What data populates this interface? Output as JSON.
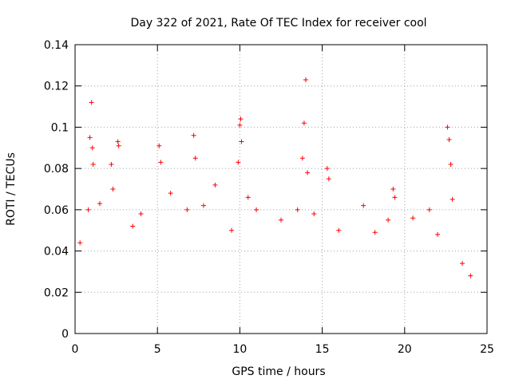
{
  "chart_data": {
    "type": "scatter",
    "title": "Day 322 of 2021, Rate Of TEC Index for receiver cool",
    "xlabel": "GPS time / hours",
    "ylabel": "ROTI / TECUs",
    "xlim": [
      0,
      25
    ],
    "ylim": [
      0,
      0.14
    ],
    "xticks": [
      0,
      5,
      10,
      15,
      20,
      25
    ],
    "yticks": [
      0,
      0.02,
      0.04,
      0.06,
      0.08,
      0.1,
      0.12,
      0.14
    ],
    "xtick_labels": [
      "0",
      "5",
      "10",
      "15",
      "20",
      "25"
    ],
    "ytick_labels": [
      "0",
      "0.02",
      "0.04",
      "0.06",
      "0.08",
      "0.1",
      "0.12",
      "0.14"
    ],
    "grid": true,
    "marker": "+",
    "color": "#ff0000",
    "series": [
      {
        "x": [
          0.9,
          1.0,
          1.05,
          1.1,
          2.2,
          2.3,
          2.6,
          2.65,
          5.1,
          5.2,
          7.2,
          7.3,
          9.9,
          10.0,
          10.05,
          10.1,
          13.8,
          13.9,
          14.0,
          14.1,
          15.3,
          15.4,
          19.3,
          19.4,
          22.6,
          22.7,
          22.8,
          22.9,
          0.3,
          0.8,
          1.5,
          3.5,
          4.0,
          5.8,
          6.8,
          7.8,
          8.5,
          9.5,
          10.5,
          11.0,
          12.5,
          13.5,
          14.5,
          16.0,
          17.5,
          18.2,
          19.0,
          20.5,
          21.5,
          22.0,
          23.5,
          24.0
        ],
        "y": [
          0.095,
          0.112,
          0.09,
          0.082,
          0.082,
          0.07,
          0.093,
          0.091,
          0.091,
          0.083,
          0.096,
          0.085,
          0.083,
          0.101,
          0.104,
          0.093,
          0.085,
          0.102,
          0.123,
          0.078,
          0.08,
          0.075,
          0.07,
          0.066,
          0.1,
          0.094,
          0.082,
          0.065,
          0.044,
          0.06,
          0.063,
          0.052,
          0.058,
          0.068,
          0.06,
          0.062,
          0.072,
          0.05,
          0.066,
          0.06,
          0.055,
          0.06,
          0.058,
          0.05,
          0.062,
          0.049,
          0.055,
          0.056,
          0.06,
          0.048,
          0.034,
          0.028
        ]
      }
    ]
  }
}
